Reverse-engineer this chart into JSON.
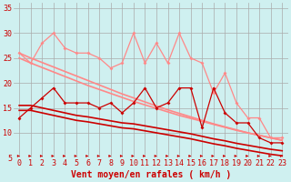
{
  "xlabel": "Vent moyen/en rafales ( km/h )",
  "bg_color": "#cff0f0",
  "grid_color": "#aaaaaa",
  "xlim": [
    -0.5,
    23.5
  ],
  "ylim": [
    5,
    36
  ],
  "yticks": [
    5,
    10,
    15,
    20,
    25,
    30,
    35
  ],
  "xticks": [
    0,
    1,
    2,
    3,
    4,
    5,
    6,
    7,
    8,
    9,
    10,
    11,
    12,
    13,
    14,
    15,
    16,
    17,
    18,
    19,
    20,
    21,
    22,
    23
  ],
  "series": [
    {
      "x": [
        0,
        1,
        2,
        3,
        4,
        5,
        6,
        7,
        8,
        9,
        10,
        11,
        12,
        13,
        14,
        15,
        16,
        17,
        18,
        19,
        20,
        21,
        22,
        23
      ],
      "y": [
        26,
        24,
        28,
        30,
        27,
        26,
        26,
        25,
        23,
        24,
        30,
        24,
        28,
        24,
        30,
        25,
        24,
        18,
        22,
        16,
        13,
        13,
        9,
        9
      ],
      "color": "#ff8888",
      "lw": 0.9,
      "marker": "D",
      "ms": 2.0,
      "zorder": 4
    },
    {
      "x": [
        0,
        1,
        2,
        3,
        4,
        5,
        6,
        7,
        8,
        9,
        10,
        11,
        12,
        13,
        14,
        15,
        16,
        17,
        18,
        19,
        20,
        21,
        22,
        23
      ],
      "y": [
        26.0,
        25.0,
        24.1,
        23.2,
        22.3,
        21.4,
        20.5,
        19.6,
        18.7,
        17.8,
        17.0,
        16.2,
        15.4,
        14.6,
        13.9,
        13.2,
        12.5,
        11.8,
        11.2,
        10.6,
        10.0,
        9.5,
        9.0,
        8.5
      ],
      "color": "#ff8888",
      "lw": 1.2,
      "marker": null,
      "ms": 0,
      "zorder": 2
    },
    {
      "x": [
        0,
        1,
        2,
        3,
        4,
        5,
        6,
        7,
        8,
        9,
        10,
        11,
        12,
        13,
        14,
        15,
        16,
        17,
        18,
        19,
        20,
        21,
        22,
        23
      ],
      "y": [
        25.0,
        24.0,
        23.1,
        22.2,
        21.3,
        20.4,
        19.5,
        18.7,
        17.9,
        17.1,
        16.3,
        15.6,
        14.9,
        14.2,
        13.5,
        12.9,
        12.3,
        11.7,
        11.1,
        10.5,
        10.0,
        9.5,
        9.0,
        8.5
      ],
      "color": "#ff8888",
      "lw": 1.2,
      "marker": null,
      "ms": 0,
      "zorder": 2
    },
    {
      "x": [
        0,
        1,
        2,
        3,
        4,
        5,
        6,
        7,
        8,
        9,
        10,
        11,
        12,
        13,
        14,
        15,
        16,
        17,
        18,
        19,
        20,
        21,
        22,
        23
      ],
      "y": [
        13,
        15,
        17,
        19,
        16,
        16,
        16,
        15,
        16,
        14,
        16,
        19,
        15,
        16,
        19,
        19,
        11,
        19,
        14,
        12,
        12,
        9,
        8,
        8
      ],
      "color": "#cc0000",
      "lw": 0.9,
      "marker": "D",
      "ms": 2.0,
      "zorder": 5
    },
    {
      "x": [
        0,
        1,
        2,
        3,
        4,
        5,
        6,
        7,
        8,
        9,
        10,
        11,
        12,
        13,
        14,
        15,
        16,
        17,
        18,
        19,
        20,
        21,
        22,
        23
      ],
      "y": [
        15.5,
        15.5,
        15.0,
        14.5,
        14.0,
        13.5,
        13.2,
        12.8,
        12.4,
        12.0,
        11.8,
        11.4,
        11.0,
        10.6,
        10.2,
        9.8,
        9.3,
        8.8,
        8.4,
        7.9,
        7.5,
        7.1,
        6.7,
        6.4
      ],
      "color": "#cc0000",
      "lw": 1.2,
      "marker": null,
      "ms": 0,
      "zorder": 3
    },
    {
      "x": [
        0,
        1,
        2,
        3,
        4,
        5,
        6,
        7,
        8,
        9,
        10,
        11,
        12,
        13,
        14,
        15,
        16,
        17,
        18,
        19,
        20,
        21,
        22,
        23
      ],
      "y": [
        14.5,
        14.5,
        14.0,
        13.5,
        13.0,
        12.5,
        12.2,
        11.8,
        11.4,
        11.0,
        10.8,
        10.4,
        10.0,
        9.6,
        9.2,
        8.8,
        8.3,
        7.8,
        7.4,
        6.9,
        6.5,
        6.1,
        5.7,
        5.4
      ],
      "color": "#cc0000",
      "lw": 1.2,
      "marker": null,
      "ms": 0,
      "zorder": 3
    }
  ],
  "arrow_color": "#cc0000",
  "xlabel_color": "#cc0000",
  "xlabel_fontsize": 7,
  "tick_fontsize": 6,
  "tick_color": "#cc0000"
}
